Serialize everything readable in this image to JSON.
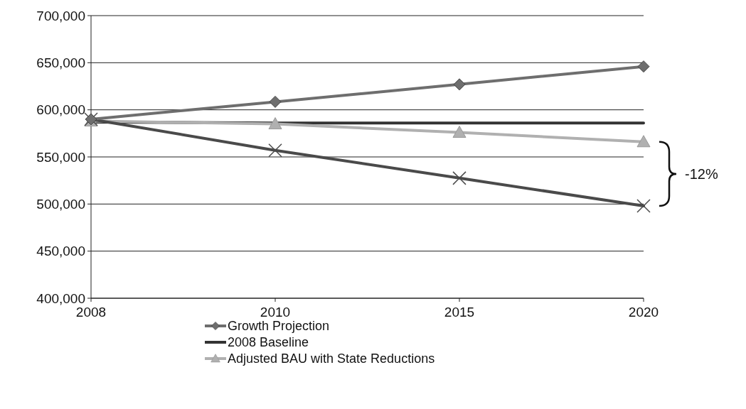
{
  "chart_data": {
    "type": "line",
    "categories": [
      "2008",
      "2010",
      "2015",
      "2020"
    ],
    "series": [
      {
        "name": "Growth Projection",
        "color": "#6e6e6e",
        "marker": "diamond",
        "values": [
          590000,
          608500,
          627000,
          646000
        ]
      },
      {
        "name": "2008 Baseline",
        "color": "#333333",
        "marker": "none",
        "values": [
          587000,
          586000,
          586000,
          586000
        ]
      },
      {
        "name": "Adjusted BAU with State Reductions",
        "color": "#b0b0b0",
        "marker": "triangle",
        "values": [
          588000,
          585000,
          576000,
          566000
        ]
      },
      {
        "color": "#4a4a4a",
        "marker": "cross",
        "values": [
          590000,
          557000,
          527500,
          498000
        ]
      }
    ],
    "ylim": [
      400000,
      700000
    ],
    "yticks": [
      {
        "value": 400000,
        "label": "400,000"
      },
      {
        "value": 450000,
        "label": "450,000"
      },
      {
        "value": 500000,
        "label": "500,000"
      },
      {
        "value": 550000,
        "label": "550,000"
      },
      {
        "value": 600000,
        "label": "600,000"
      },
      {
        "value": 650000,
        "label": "650,000"
      },
      {
        "value": 700000,
        "label": "700,000"
      }
    ],
    "grid": "y",
    "legend": "bottom",
    "annotations": [
      "-12%"
    ]
  }
}
